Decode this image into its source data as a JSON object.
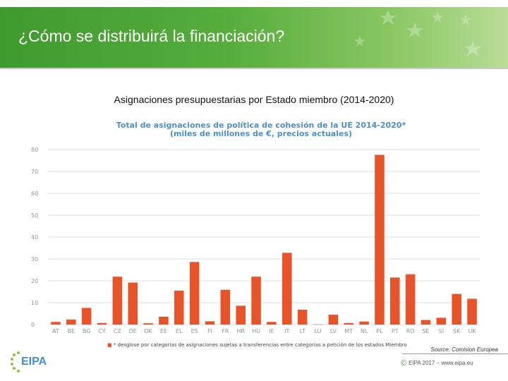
{
  "header": {
    "title": "¿Cómo se distribuirá la financiación?",
    "subtitle": "Asignaciones presupuestarias por Estado miembro (2014-2020)"
  },
  "chart_data": {
    "type": "bar",
    "title": "Total de asignaciones de política de cohesión de la UE 2014-2020*",
    "subtitle": "(miles de millones de €, precios actuales)",
    "categories": [
      "AT",
      "BE",
      "BG",
      "CY",
      "CZ",
      "DE",
      "DK",
      "EE",
      "EL",
      "ES",
      "FI",
      "FR",
      "HR",
      "HU",
      "IE",
      "IT",
      "LT",
      "LU",
      "LV",
      "MT",
      "NL",
      "PL",
      "PT",
      "RO",
      "SE",
      "SI",
      "SK",
      "UK"
    ],
    "values": [
      1.2,
      2.3,
      7.6,
      0.7,
      21.9,
      19.2,
      0.6,
      3.6,
      15.5,
      28.6,
      1.5,
      15.9,
      8.6,
      21.9,
      1.2,
      32.8,
      6.8,
      0.1,
      4.5,
      0.7,
      1.4,
      77.6,
      21.5,
      23.0,
      2.1,
      3.1,
      14.0,
      11.8
    ],
    "ylim": [
      0,
      80
    ],
    "yticks": [
      "0",
      "10",
      "20",
      "30",
      "40",
      "50",
      "60",
      "70",
      "80"
    ],
    "grid": true,
    "bar_color": "#e8532a",
    "footnote_mark": "■",
    "footnote": "* desglose por categorías de asignaciones sujetas a transferencias entre categorías a petición de los estados Miembro"
  },
  "footer": {
    "source": "Source: Comision Europea",
    "logo_text": "EIPA",
    "copyright_symbol": "©",
    "copyright": "EIPA 2017 – www.eipa.eu"
  },
  "colors": {
    "banner": "#4fa83a",
    "accent": "#e8532a",
    "chart_title": "#4a90c8"
  }
}
